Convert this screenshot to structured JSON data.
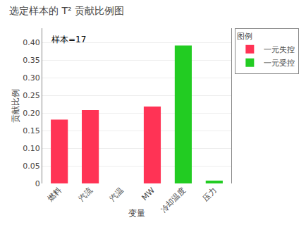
{
  "chart_data": {
    "type": "bar",
    "title": "选定样本的 T² 贡献比例图",
    "annotation": "样本=17",
    "xlabel": "变量",
    "ylabel": "贡献比例",
    "categories": [
      "燃料",
      "汽流",
      "汽温",
      "MW",
      "冷却温度",
      "压力"
    ],
    "series": [
      {
        "name": "一元失控",
        "color": "#FF3355",
        "values": [
          0.181,
          0.208,
          0.0,
          0.218,
          0.0,
          0.0
        ]
      },
      {
        "name": "一元受控",
        "color": "#22CC22",
        "values": [
          0.0,
          0.0,
          0.0,
          0.0,
          0.391,
          0.008
        ]
      }
    ],
    "legend_title": "图例",
    "legend": "upper right",
    "ylim": [
      0,
      0.44
    ],
    "yticks": [
      0,
      0.05,
      {
        "value": 0.1,
        "label": "0.10"
      },
      0.15,
      {
        "value": 0.2,
        "label": "0.20"
      },
      0.25,
      {
        "value": 0.3,
        "label": "0.30"
      },
      0.35,
      {
        "value": 0.4,
        "label": "0.40"
      }
    ],
    "grid": true
  }
}
